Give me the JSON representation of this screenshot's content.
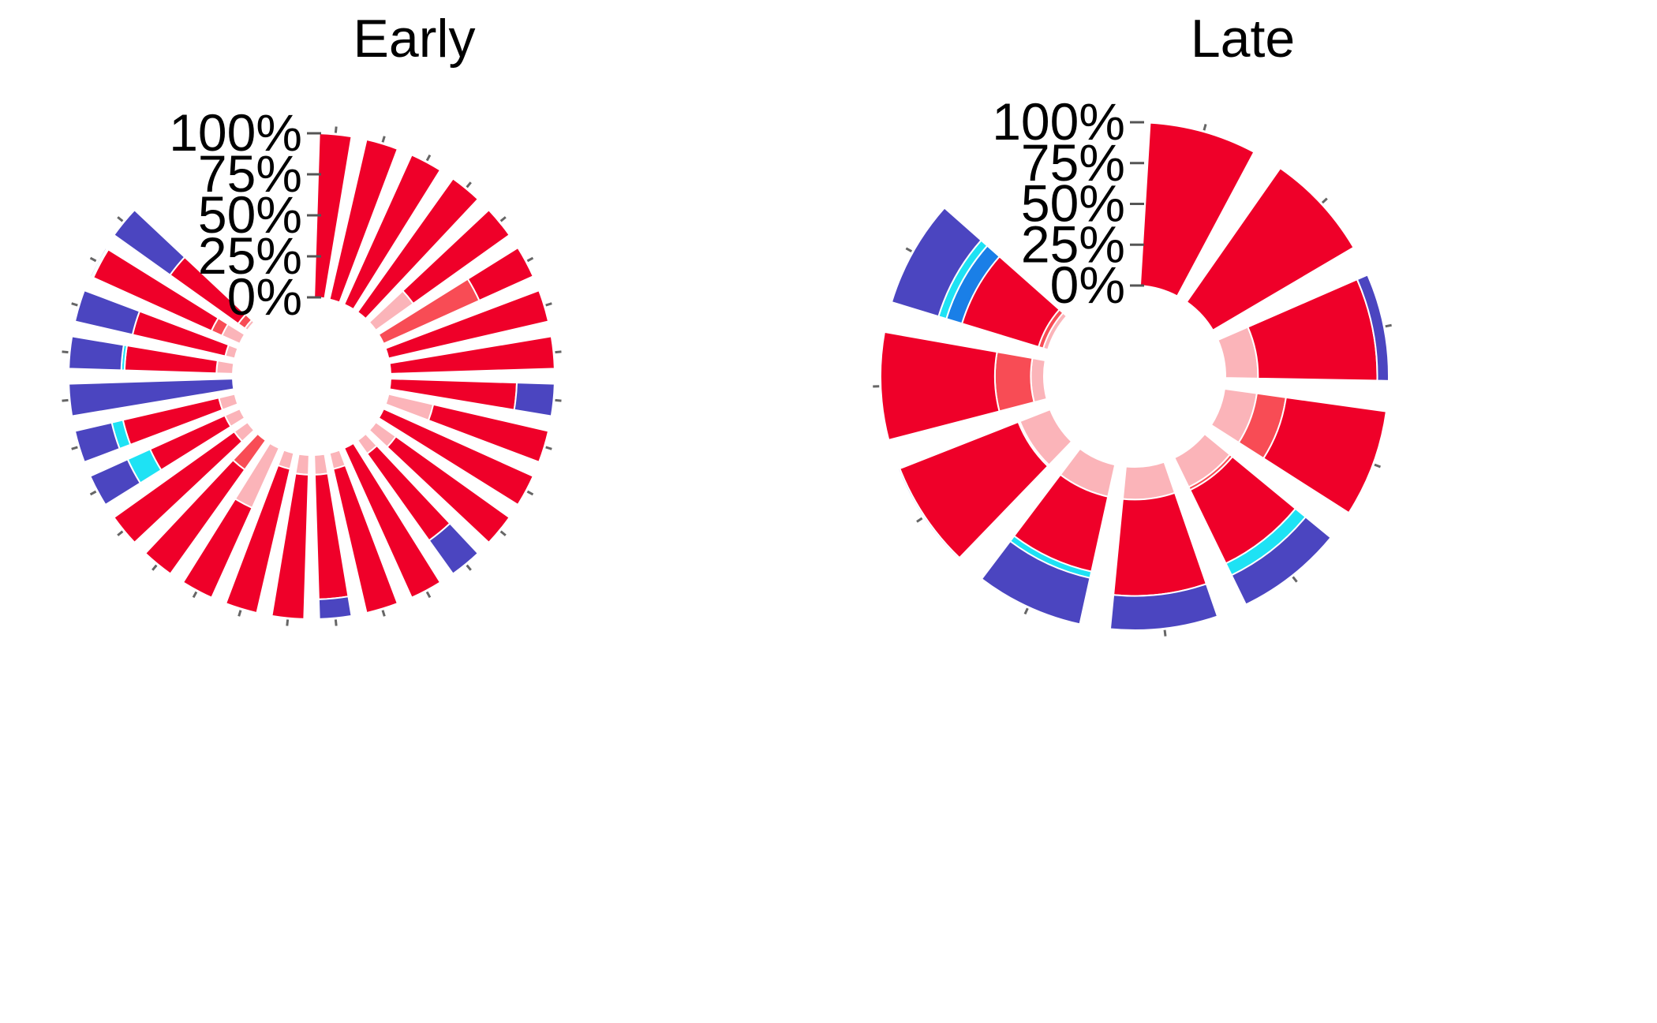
{
  "chart_data": [
    {
      "type": "polar-stacked-bar",
      "title": "Early",
      "radial_ticks": [
        "0%",
        "25%",
        "50%",
        "75%",
        "100%"
      ],
      "ylim": [
        0,
        100
      ],
      "angular_span_deg": 315,
      "colors": [
        "#fbb4b9",
        "#f84c55",
        "#ef0029",
        "#1a7fe7",
        "#1ee2f4",
        "#4b45c0"
      ],
      "bars": [
        [
          0,
          0,
          100,
          0,
          0,
          0
        ],
        [
          0,
          0,
          100,
          0,
          0,
          0
        ],
        [
          0,
          0,
          100,
          0,
          0,
          0
        ],
        [
          0,
          0,
          100,
          0,
          0,
          0
        ],
        [
          28,
          0,
          72,
          0,
          0,
          0
        ],
        [
          0,
          64,
          36,
          0,
          0,
          0
        ],
        [
          0,
          0,
          100,
          0,
          0,
          0
        ],
        [
          0,
          0,
          100,
          0,
          0,
          0
        ],
        [
          0,
          0,
          77,
          0,
          0,
          23
        ],
        [
          28,
          0,
          72,
          0,
          0,
          0
        ],
        [
          0,
          0,
          100,
          0,
          0,
          0
        ],
        [
          15,
          0,
          85,
          0,
          0,
          0
        ],
        [
          10,
          0,
          65,
          0,
          0,
          25
        ],
        [
          0,
          0,
          100,
          0,
          0,
          0
        ],
        [
          10,
          0,
          90,
          0,
          0,
          0
        ],
        [
          12,
          0,
          76,
          0,
          0,
          12
        ],
        [
          12,
          0,
          88,
          0,
          0,
          0
        ],
        [
          10,
          0,
          90,
          0,
          0,
          0
        ],
        [
          40,
          0,
          60,
          0,
          0,
          0
        ],
        [
          0,
          22,
          78,
          0,
          0,
          0
        ],
        [
          10,
          0,
          90,
          0,
          0,
          0
        ],
        [
          10,
          0,
          50,
          0,
          15,
          25
        ],
        [
          10,
          0,
          60,
          0,
          7,
          23
        ],
        [
          0,
          0,
          0,
          0,
          0,
          100
        ],
        [
          10,
          0,
          56,
          0,
          2,
          32
        ],
        [
          6,
          0,
          58,
          0,
          0,
          36
        ],
        [
          12,
          7,
          79,
          0,
          1,
          1
        ],
        [
          2,
          5,
          51,
          0,
          0,
          42
        ]
      ]
    },
    {
      "type": "polar-stacked-bar",
      "title": "Late",
      "radial_ticks": [
        "0%",
        "25%",
        "50%",
        "75%",
        "100%"
      ],
      "ylim": [
        0,
        100
      ],
      "angular_span_deg": 315,
      "colors": [
        "#fbb4b9",
        "#f84c55",
        "#ef0029",
        "#1a7fe7",
        "#1ee2f4",
        "#4b45c0"
      ],
      "bars": [
        [
          0,
          0,
          100,
          0,
          0,
          0
        ],
        [
          0,
          0,
          100,
          0,
          0,
          0
        ],
        [
          20,
          0,
          73,
          0,
          0,
          7
        ],
        [
          20,
          18,
          62,
          0,
          0,
          0
        ],
        [
          20,
          2,
          50,
          0,
          8,
          20
        ],
        [
          20,
          0,
          59,
          0,
          0,
          21
        ],
        [
          20,
          0,
          47,
          0,
          4,
          29
        ],
        [
          20,
          1,
          78,
          0,
          0,
          1
        ],
        [
          8,
          22,
          70,
          0,
          0,
          0
        ],
        [
          3,
          3,
          49,
          10,
          5,
          30
        ]
      ]
    }
  ]
}
